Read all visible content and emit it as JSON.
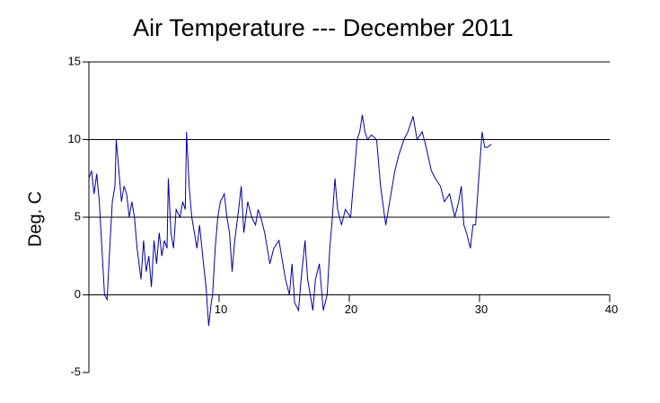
{
  "chart_data": {
    "type": "line",
    "title": "Air Temperature --- December 2011",
    "ylabel": "Deg. C",
    "x": [
      0,
      0.2,
      0.4,
      0.6,
      0.8,
      1.0,
      1.2,
      1.4,
      1.6,
      1.8,
      2.0,
      2.1,
      2.3,
      2.5,
      2.7,
      2.9,
      3.1,
      3.3,
      3.5,
      3.7,
      4.0,
      4.2,
      4.4,
      4.6,
      4.8,
      5.0,
      5.2,
      5.4,
      5.6,
      5.8,
      6.0,
      6.1,
      6.3,
      6.5,
      6.7,
      7.0,
      7.2,
      7.4,
      7.5,
      7.7,
      7.9,
      8.1,
      8.3,
      8.5,
      8.8,
      9.0,
      9.2,
      9.4,
      9.5,
      9.7,
      9.9,
      10.1,
      10.4,
      10.6,
      10.8,
      11.0,
      11.2,
      11.5,
      11.7,
      11.9,
      12.2,
      12.5,
      12.8,
      13.0,
      13.2,
      13.5,
      13.9,
      14.2,
      14.6,
      14.9,
      15.1,
      15.4,
      15.6,
      15.8,
      16.1,
      16.3,
      16.6,
      16.8,
      17.0,
      17.2,
      17.4,
      17.7,
      17.9,
      18.0,
      18.3,
      18.5,
      18.7,
      18.9,
      19.1,
      19.4,
      19.7,
      20.1,
      20.3,
      20.6,
      20.8,
      21.0,
      21.2,
      21.4,
      21.7,
      22.1,
      22.4,
      22.8,
      23.1,
      23.5,
      23.8,
      24.2,
      24.5,
      24.9,
      25.2,
      25.6,
      25.9,
      26.3,
      26.6,
      27.0,
      27.3,
      27.7,
      28.1,
      28.4,
      28.6,
      28.8,
      29.0,
      29.3,
      29.5,
      29.7,
      29.9,
      30.2,
      30.4,
      30.6,
      30.9
    ],
    "series": [
      {
        "color": "#0000a0",
        "values": [
          7.5,
          8,
          6.5,
          7.8,
          6,
          3,
          0,
          -0.3,
          3,
          6,
          7,
          10,
          8,
          6,
          7,
          6.5,
          5,
          6,
          5,
          3,
          1,
          3.5,
          1.5,
          2.5,
          0.5,
          3.5,
          2,
          4,
          2.5,
          3.5,
          3,
          7.5,
          4,
          3,
          5.5,
          5,
          6,
          5.5,
          10.5,
          7,
          5,
          4,
          3,
          4.5,
          2,
          0.5,
          -2,
          -0.5,
          0,
          3,
          5,
          6,
          6.5,
          5,
          4,
          1.5,
          3.5,
          5.5,
          7,
          4,
          6,
          5,
          4.5,
          5.5,
          5,
          4,
          2,
          3,
          3.5,
          2,
          1,
          0,
          2,
          -0.5,
          -1,
          1,
          3.5,
          1,
          0,
          -1,
          1,
          2,
          0,
          -1,
          0,
          3,
          5,
          7.5,
          5.5,
          4.5,
          5.5,
          5,
          7,
          10,
          10.5,
          11.6,
          10.5,
          10,
          10.3,
          10,
          7,
          4.5,
          6,
          8,
          9,
          10,
          10.5,
          11.5,
          10,
          10.5,
          9.5,
          8,
          7.5,
          7,
          6,
          6.5,
          5,
          6,
          7,
          4.5,
          4,
          3,
          4.5,
          4.5,
          7,
          10.5,
          9.5,
          9.5,
          9.7
        ]
      }
    ],
    "xlim": [
      0,
      40
    ],
    "xticks": [
      10,
      20,
      30,
      40
    ],
    "ylim": [
      -5,
      15
    ],
    "yticks": [
      -5,
      0,
      5,
      10,
      15
    ],
    "grid": true
  }
}
